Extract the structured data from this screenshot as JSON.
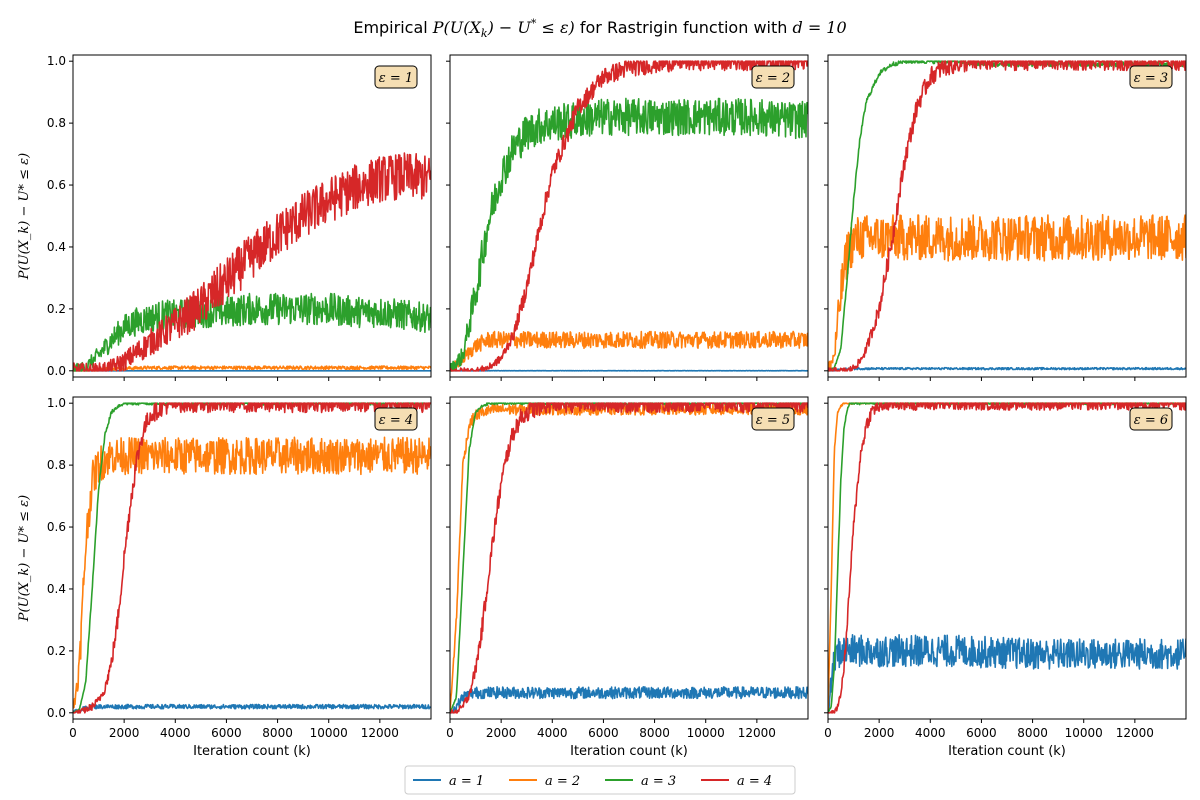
{
  "figure": {
    "title_pre": "Empirical ",
    "title_math": "P(U(X",
    "title_sub": "k",
    "title_math2": ") − U",
    "title_sup": "*",
    "title_math3": " ≤ ε)",
    "title_post": " for Rastrigin function with ",
    "title_d": "d = 10"
  },
  "axes_text": {
    "xlabel": "Iteration count (k)",
    "ylabel": "P(U(X_k) − U* ≤ ε)",
    "xticks": [
      "0",
      "2000",
      "4000",
      "6000",
      "8000",
      "10000",
      "12000"
    ],
    "yticks": [
      "0.0",
      "0.2",
      "0.4",
      "0.6",
      "0.8",
      "1.0"
    ]
  },
  "legend": [
    {
      "label": "a = 1",
      "color": "#1f77b4"
    },
    {
      "label": "a = 2",
      "color": "#ff7f0e"
    },
    {
      "label": "a = 3",
      "color": "#2ca02c"
    },
    {
      "label": "a = 4",
      "color": "#d62728"
    }
  ],
  "chart_data": [
    {
      "type": "line",
      "panel": "ε = 1",
      "xlim": [
        0,
        14000
      ],
      "ylim": [
        -0.02,
        1.02
      ],
      "grid": false,
      "x": [
        0,
        500,
        1000,
        1500,
        2000,
        2500,
        3000,
        3500,
        4000,
        5000,
        6000,
        7000,
        8000,
        9000,
        10000,
        11000,
        12000,
        13000,
        14000
      ],
      "series": [
        {
          "name": "a = 1",
          "values": [
            0,
            0,
            0,
            0,
            0,
            0,
            0,
            0,
            0,
            0,
            0,
            0,
            0,
            0,
            0,
            0,
            0,
            0,
            0
          ],
          "noise": 0.0
        },
        {
          "name": "a = 2",
          "values": [
            0,
            0,
            0.005,
            0.007,
            0.008,
            0.009,
            0.01,
            0.01,
            0.01,
            0.01,
            0.01,
            0.01,
            0.01,
            0.01,
            0.01,
            0.01,
            0.01,
            0.01,
            0.01
          ],
          "noise": 0.01
        },
        {
          "name": "a = 3",
          "values": [
            0,
            0.01,
            0.05,
            0.1,
            0.14,
            0.16,
            0.17,
            0.18,
            0.18,
            0.19,
            0.19,
            0.2,
            0.2,
            0.2,
            0.2,
            0.19,
            0.19,
            0.18,
            0.17
          ],
          "noise": 0.04
        },
        {
          "name": "a = 4",
          "values": [
            0,
            0,
            0,
            0.01,
            0.03,
            0.06,
            0.09,
            0.12,
            0.15,
            0.21,
            0.29,
            0.37,
            0.44,
            0.5,
            0.55,
            0.59,
            0.62,
            0.63,
            0.62
          ],
          "noise": 0.05
        }
      ]
    },
    {
      "type": "line",
      "panel": "ε = 2",
      "xlim": [
        0,
        14000
      ],
      "ylim": [
        -0.02,
        1.02
      ],
      "grid": false,
      "x": [
        0,
        500,
        1000,
        1500,
        2000,
        2500,
        3000,
        3500,
        4000,
        5000,
        6000,
        7000,
        8000,
        9000,
        10000,
        11000,
        12000,
        13000,
        14000
      ],
      "series": [
        {
          "name": "a = 1",
          "values": [
            0,
            0,
            0,
            0,
            0,
            0,
            0,
            0,
            0,
            0,
            0,
            0,
            0,
            0,
            0,
            0,
            0,
            0,
            0
          ],
          "noise": 0.002
        },
        {
          "name": "a = 2",
          "values": [
            0,
            0.04,
            0.08,
            0.1,
            0.1,
            0.1,
            0.1,
            0.1,
            0.1,
            0.1,
            0.1,
            0.1,
            0.1,
            0.1,
            0.1,
            0.1,
            0.1,
            0.1,
            0.1
          ],
          "noise": 0.03
        },
        {
          "name": "a = 3",
          "values": [
            0,
            0.05,
            0.25,
            0.48,
            0.63,
            0.72,
            0.77,
            0.79,
            0.8,
            0.81,
            0.82,
            0.82,
            0.82,
            0.82,
            0.82,
            0.82,
            0.82,
            0.81,
            0.81
          ],
          "noise": 0.04
        },
        {
          "name": "a = 4",
          "values": [
            0,
            0,
            0,
            0.01,
            0.04,
            0.12,
            0.27,
            0.46,
            0.64,
            0.85,
            0.95,
            0.98,
            0.99,
            1,
            1,
            1,
            1,
            1,
            1
          ],
          "noise": 0.02
        }
      ]
    },
    {
      "type": "line",
      "panel": "ε = 3",
      "xlim": [
        0,
        14000
      ],
      "ylim": [
        -0.02,
        1.02
      ],
      "grid": false,
      "x": [
        0,
        250,
        500,
        750,
        1000,
        1250,
        1500,
        2000,
        2500,
        3000,
        3500,
        4000,
        4500,
        5000,
        6000,
        8000,
        10000,
        12000,
        14000
      ],
      "series": [
        {
          "name": "a = 1",
          "values": [
            0,
            0,
            0.005,
            0.006,
            0.007,
            0.007,
            0.007,
            0.007,
            0.007,
            0.007,
            0.007,
            0.007,
            0.007,
            0.007,
            0.007,
            0.007,
            0.007,
            0.007,
            0.007
          ],
          "noise": 0.006
        },
        {
          "name": "a = 2",
          "values": [
            0,
            0.05,
            0.25,
            0.38,
            0.42,
            0.43,
            0.43,
            0.43,
            0.43,
            0.43,
            0.43,
            0.43,
            0.43,
            0.43,
            0.43,
            0.43,
            0.43,
            0.43,
            0.43
          ],
          "noise": 0.05
        },
        {
          "name": "a = 3",
          "values": [
            0,
            0.01,
            0.07,
            0.3,
            0.55,
            0.75,
            0.87,
            0.96,
            0.99,
            1,
            1,
            1,
            1,
            1,
            0.99,
            0.99,
            0.99,
            0.99,
            0.99
          ],
          "noise": 0.005
        },
        {
          "name": "a = 4",
          "values": [
            0,
            0,
            0,
            0,
            0.01,
            0.03,
            0.07,
            0.2,
            0.42,
            0.68,
            0.86,
            0.95,
            0.98,
            0.99,
            1,
            1,
            1,
            1,
            1
          ],
          "noise": 0.02
        }
      ]
    },
    {
      "type": "line",
      "panel": "ε = 4",
      "xlim": [
        0,
        14000
      ],
      "ylim": [
        -0.02,
        1.02
      ],
      "grid": false,
      "x": [
        0,
        250,
        500,
        750,
        1000,
        1250,
        1500,
        1750,
        2000,
        2250,
        2500,
        2750,
        3000,
        3500,
        4000,
        5000,
        8000,
        11000,
        14000
      ],
      "series": [
        {
          "name": "a = 1",
          "values": [
            0,
            0.01,
            0.015,
            0.02,
            0.02,
            0.02,
            0.02,
            0.02,
            0.02,
            0.02,
            0.02,
            0.02,
            0.02,
            0.02,
            0.02,
            0.02,
            0.02,
            0.02,
            0.02
          ],
          "noise": 0.012
        },
        {
          "name": "a = 2",
          "values": [
            0,
            0.15,
            0.55,
            0.75,
            0.8,
            0.82,
            0.83,
            0.83,
            0.83,
            0.83,
            0.83,
            0.83,
            0.83,
            0.83,
            0.83,
            0.83,
            0.83,
            0.83,
            0.83
          ],
          "noise": 0.04
        },
        {
          "name": "a = 3",
          "values": [
            0,
            0.01,
            0.1,
            0.4,
            0.72,
            0.9,
            0.97,
            0.99,
            1,
            1,
            1,
            1,
            1,
            1,
            1,
            1,
            1,
            1,
            1
          ],
          "noise": 0.004
        },
        {
          "name": "a = 4",
          "values": [
            0,
            0,
            0.01,
            0.02,
            0.04,
            0.08,
            0.16,
            0.3,
            0.5,
            0.68,
            0.82,
            0.91,
            0.96,
            0.99,
            1,
            1,
            1,
            1,
            1
          ],
          "noise": 0.02
        }
      ]
    },
    {
      "type": "line",
      "panel": "ε = 5",
      "xlim": [
        0,
        14000
      ],
      "ylim": [
        -0.02,
        1.02
      ],
      "grid": false,
      "x": [
        0,
        250,
        500,
        750,
        1000,
        1250,
        1500,
        1750,
        2000,
        2250,
        2500,
        2750,
        3000,
        3500,
        4000,
        5000,
        8000,
        11000,
        14000
      ],
      "series": [
        {
          "name": "a = 1",
          "values": [
            0,
            0.02,
            0.05,
            0.06,
            0.065,
            0.065,
            0.065,
            0.065,
            0.065,
            0.065,
            0.065,
            0.065,
            0.065,
            0.065,
            0.065,
            0.065,
            0.065,
            0.065,
            0.065
          ],
          "noise": 0.025
        },
        {
          "name": "a = 2",
          "values": [
            0,
            0.3,
            0.8,
            0.93,
            0.96,
            0.97,
            0.975,
            0.98,
            0.98,
            0.98,
            0.98,
            0.98,
            0.98,
            0.98,
            0.98,
            0.98,
            0.98,
            0.98,
            0.98
          ],
          "noise": 0.012
        },
        {
          "name": "a = 3",
          "values": [
            0,
            0.05,
            0.45,
            0.85,
            0.97,
            0.99,
            1,
            1,
            1,
            1,
            1,
            1,
            1,
            1,
            1,
            1,
            1,
            1,
            1
          ],
          "noise": 0.003
        },
        {
          "name": "a = 4",
          "values": [
            0,
            0,
            0.02,
            0.06,
            0.14,
            0.27,
            0.44,
            0.6,
            0.74,
            0.84,
            0.91,
            0.95,
            0.97,
            0.99,
            1,
            1,
            1,
            1,
            1
          ],
          "noise": 0.02
        }
      ]
    },
    {
      "type": "line",
      "panel": "ε = 6",
      "xlim": [
        0,
        14000
      ],
      "ylim": [
        -0.02,
        1.02
      ],
      "grid": false,
      "x": [
        0,
        125,
        250,
        375,
        500,
        625,
        750,
        875,
        1000,
        1250,
        1500,
        1750,
        2000,
        2500,
        3000,
        5000,
        8000,
        11000,
        14000
      ],
      "series": [
        {
          "name": "a = 1",
          "values": [
            0,
            0.1,
            0.17,
            0.19,
            0.2,
            0.2,
            0.2,
            0.2,
            0.2,
            0.2,
            0.2,
            0.2,
            0.2,
            0.2,
            0.2,
            0.2,
            0.19,
            0.19,
            0.19
          ],
          "noise": 0.04
        },
        {
          "name": "a = 2",
          "values": [
            0,
            0.4,
            0.85,
            0.97,
            0.99,
            1,
            1,
            1,
            1,
            1,
            1,
            1,
            1,
            1,
            1,
            1,
            1,
            1,
            1
          ],
          "noise": 0.002
        },
        {
          "name": "a = 3",
          "values": [
            0,
            0.02,
            0.15,
            0.45,
            0.75,
            0.92,
            0.98,
            1,
            1,
            1,
            1,
            1,
            1,
            1,
            1,
            1,
            1,
            1,
            1
          ],
          "noise": 0.003
        },
        {
          "name": "a = 4",
          "values": [
            0,
            0,
            0,
            0.02,
            0.06,
            0.15,
            0.28,
            0.45,
            0.6,
            0.82,
            0.93,
            0.98,
            0.99,
            1,
            1,
            1,
            1,
            1,
            1
          ],
          "noise": 0.015
        }
      ]
    }
  ]
}
